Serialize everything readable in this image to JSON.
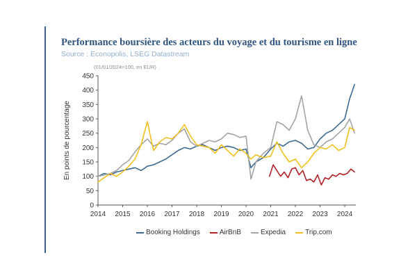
{
  "header": {
    "title": "Performance boursière des acteurs du voyage et du tourisme en ligne",
    "source": "Source : Econopolis, LSEG Datastream",
    "note": "(01/01/2024=100, en EUR)"
  },
  "colors": {
    "accent_bar": "#3a5f88",
    "title": "#2f5580",
    "source": "#8fb0cf",
    "axis": "#555555"
  },
  "chart_data": {
    "type": "line",
    "ylabel": "En points de pourcentage",
    "ylim": [
      0,
      450
    ],
    "yticks": [
      0,
      50,
      100,
      150,
      200,
      250,
      300,
      350,
      400,
      450
    ],
    "xlim": [
      2014,
      2024.45
    ],
    "xticks": [
      2014,
      2015,
      2016,
      2017,
      2018,
      2019,
      2020,
      2021,
      2022,
      2023,
      2024
    ],
    "grid": false,
    "legend_position": "bottom",
    "series": [
      {
        "name": "Booking Holdings",
        "color": "#3d6a91",
        "x": [
          2014,
          2014.25,
          2014.5,
          2014.75,
          2015,
          2015.25,
          2015.5,
          2015.75,
          2016,
          2016.25,
          2016.5,
          2016.75,
          2017,
          2017.25,
          2017.5,
          2017.75,
          2018,
          2018.25,
          2018.5,
          2018.75,
          2019,
          2019.25,
          2019.5,
          2019.75,
          2020,
          2020.2,
          2020.4,
          2020.7,
          2021,
          2021.25,
          2021.5,
          2021.75,
          2022,
          2022.25,
          2022.5,
          2022.75,
          2023,
          2023.25,
          2023.5,
          2023.75,
          2024,
          2024.2,
          2024.4
        ],
        "values": [
          100,
          110,
          105,
          115,
          120,
          125,
          130,
          120,
          135,
          140,
          150,
          160,
          175,
          190,
          200,
          195,
          205,
          210,
          200,
          190,
          200,
          205,
          200,
          190,
          195,
          130,
          150,
          165,
          195,
          215,
          205,
          220,
          225,
          215,
          195,
          200,
          230,
          250,
          260,
          280,
          300,
          370,
          420
        ]
      },
      {
        "name": "AirBnB",
        "color": "#b52025",
        "x": [
          2020.95,
          2021.1,
          2021.25,
          2021.4,
          2021.55,
          2021.7,
          2021.85,
          2022,
          2022.15,
          2022.3,
          2022.45,
          2022.6,
          2022.75,
          2022.9,
          2023.05,
          2023.2,
          2023.35,
          2023.5,
          2023.65,
          2023.8,
          2023.95,
          2024.1,
          2024.25,
          2024.4
        ],
        "values": [
          100,
          140,
          120,
          100,
          115,
          95,
          125,
          130,
          105,
          120,
          85,
          90,
          80,
          105,
          70,
          95,
          90,
          105,
          100,
          110,
          105,
          110,
          125,
          115
        ]
      },
      {
        "name": "Expedia",
        "color": "#a3a3a3",
        "x": [
          2014,
          2014.25,
          2014.5,
          2014.75,
          2015,
          2015.25,
          2015.5,
          2015.75,
          2016,
          2016.25,
          2016.5,
          2016.75,
          2017,
          2017.25,
          2017.5,
          2017.75,
          2018,
          2018.25,
          2018.5,
          2018.75,
          2019,
          2019.25,
          2019.5,
          2019.75,
          2020,
          2020.2,
          2020.4,
          2020.7,
          2021,
          2021.25,
          2021.5,
          2021.75,
          2022,
          2022.25,
          2022.5,
          2022.75,
          2023,
          2023.25,
          2023.5,
          2023.75,
          2024,
          2024.2,
          2024.4
        ],
        "values": [
          100,
          105,
          110,
          120,
          140,
          155,
          185,
          210,
          230,
          205,
          215,
          210,
          225,
          250,
          265,
          220,
          205,
          215,
          225,
          220,
          230,
          250,
          245,
          235,
          240,
          90,
          150,
          180,
          200,
          290,
          280,
          260,
          300,
          380,
          260,
          210,
          200,
          220,
          230,
          250,
          270,
          300,
          250
        ]
      },
      {
        "name": "Trip.com",
        "color": "#f2c01e",
        "x": [
          2014,
          2014.25,
          2014.5,
          2014.75,
          2015,
          2015.25,
          2015.5,
          2015.75,
          2016,
          2016.25,
          2016.5,
          2016.75,
          2017,
          2017.25,
          2017.5,
          2017.75,
          2018,
          2018.25,
          2018.5,
          2018.75,
          2019,
          2019.25,
          2019.5,
          2019.75,
          2020,
          2020.2,
          2020.4,
          2020.7,
          2021,
          2021.25,
          2021.5,
          2021.75,
          2022,
          2022.25,
          2022.5,
          2022.75,
          2023,
          2023.25,
          2023.5,
          2023.75,
          2024,
          2024.2,
          2024.4
        ],
        "values": [
          80,
          95,
          110,
          100,
          115,
          135,
          160,
          210,
          290,
          190,
          220,
          235,
          230,
          250,
          280,
          240,
          210,
          205,
          200,
          180,
          210,
          190,
          170,
          195,
          180,
          160,
          175,
          165,
          170,
          220,
          180,
          150,
          160,
          130,
          150,
          180,
          200,
          195,
          210,
          190,
          200,
          270,
          260
        ]
      }
    ]
  }
}
